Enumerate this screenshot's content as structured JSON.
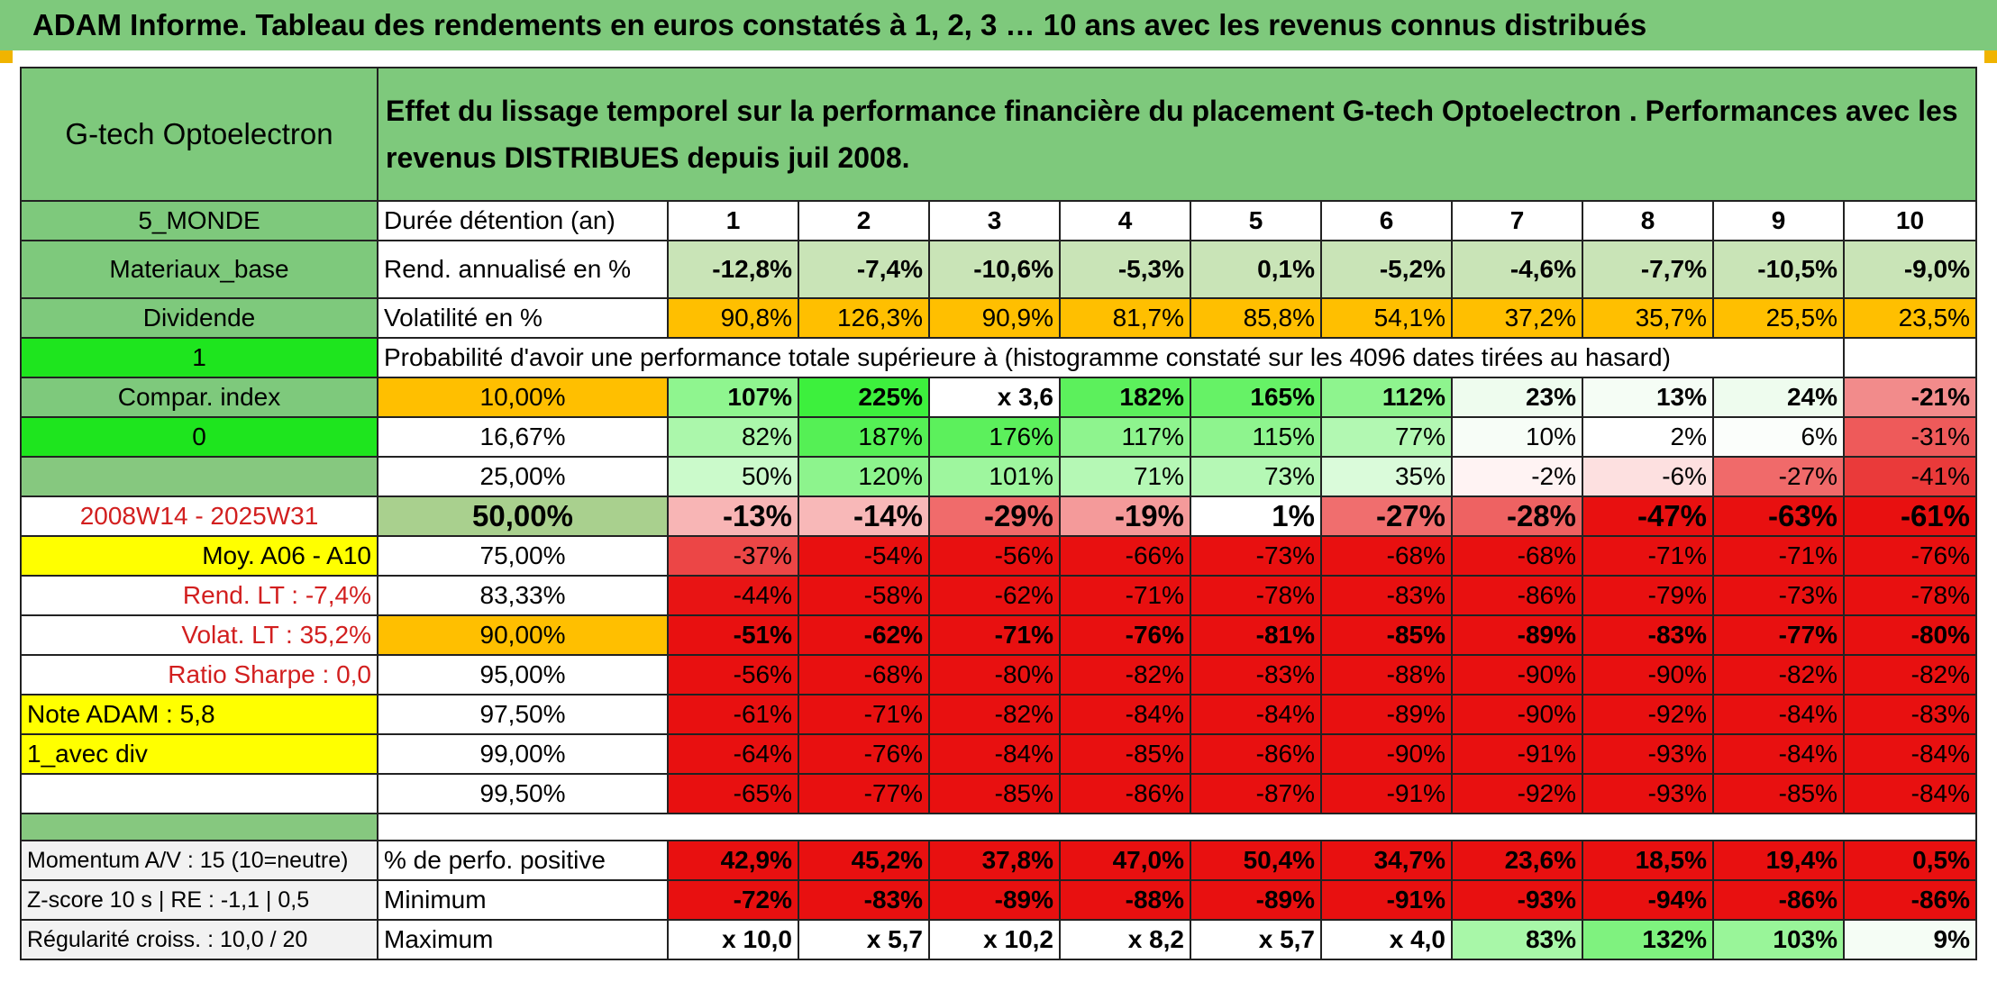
{
  "title": "ADAM Informe. Tableau des rendements en euros constatés à 1, 2, 3 … 10 ans avec les revenus connus distribués",
  "fund_name": "G-tech Optoelectron",
  "header_text": "Effet du lissage temporel sur la performance financière du placement G-tech Optoelectron . Performances avec les revenus DISTRIBUES depuis juil 2008.",
  "left_labels": {
    "zone": "5_MONDE",
    "sector": "Materiaux_base",
    "dividende": "Dividende",
    "div_value": "1",
    "compar_index": "Compar. index",
    "compar_value": "0",
    "period": "2008W14 - 2025W31",
    "moy": "Moy. A06 - A10",
    "rend_lt": "Rend. LT :   -7,4%",
    "volat_lt": "Volat. LT :   35,2%",
    "sharpe": "Ratio Sharpe :    0,0",
    "note": "Note ADAM : 5,8",
    "avec_div": "1_avec div",
    "momentum": "Momentum A/V : 15 (10=neutre)",
    "zscore": "Z-score 10 s | RE : -1,1 | 0,5",
    "regularite": "Régularité croiss. : 10,0 / 20"
  },
  "row_labels": {
    "duree": "Durée détention (an)",
    "rend": "Rend. annualisé en %",
    "volat": "Volatilité en %",
    "proba": "Probabilité d'avoir une performance totale supérieure à (histogramme constaté sur les 4096 dates tirées au hasard)",
    "positive": "% de perfo. positive",
    "minimum": "Minimum",
    "maximum": "Maximum"
  },
  "years": [
    "1",
    "2",
    "3",
    "4",
    "5",
    "6",
    "7",
    "8",
    "9",
    "10"
  ],
  "rend_values": [
    "-12,8%",
    "-7,4%",
    "-10,6%",
    "-5,3%",
    "0,1%",
    "-5,2%",
    "-4,6%",
    "-7,7%",
    "-10,5%",
    "-9,0%"
  ],
  "volat_values": [
    "90,8%",
    "126,3%",
    "90,9%",
    "81,7%",
    "85,8%",
    "54,1%",
    "37,2%",
    "35,7%",
    "25,5%",
    "23,5%"
  ],
  "percentile_rows": [
    {
      "p": "10,00%",
      "v": [
        "107%",
        "225%",
        "x 3,6",
        "182%",
        "165%",
        "112%",
        "23%",
        "13%",
        "24%",
        "-21%"
      ],
      "bg": [
        "#8ff58f",
        "#3df03d",
        "#ffffff",
        "#5cf05c",
        "#66f266",
        "#8ef48e",
        "#eefcee",
        "#f5fdf5",
        "#eefcee",
        "#f28b8b"
      ]
    },
    {
      "p": "16,67%",
      "v": [
        "82%",
        "187%",
        "176%",
        "117%",
        "115%",
        "77%",
        "10%",
        "2%",
        "6%",
        "-31%"
      ],
      "bg": [
        "#abf7ab",
        "#55f055",
        "#5cf05c",
        "#8ef48e",
        "#8ef48e",
        "#b2f8b2",
        "#f7fdf7",
        "#ffffff",
        "#fbfefb",
        "#ee5a5a"
      ]
    },
    {
      "p": "25,00%",
      "v": [
        "50%",
        "120%",
        "101%",
        "71%",
        "73%",
        "35%",
        "-2%",
        "-6%",
        "-27%",
        "-41%"
      ],
      "bg": [
        "#cbfacb",
        "#8df48d",
        "#9ef69e",
        "#b5f8b5",
        "#b5f8b5",
        "#dafbda",
        "#fff3f3",
        "#fde0e0",
        "#f06a6a",
        "#ea3a3a"
      ]
    },
    {
      "p": "50,00%",
      "v": [
        "-13%",
        "-14%",
        "-29%",
        "-19%",
        "1%",
        "-27%",
        "-28%",
        "-47%",
        "-63%",
        "-61%"
      ],
      "bg": [
        "#f8b5b5",
        "#f8b8b8",
        "#f06b6b",
        "#f49a9a",
        "#ffffff",
        "#f06e6e",
        "#ee6262",
        "#e81010",
        "#e81010",
        "#e81010"
      ]
    },
    {
      "p": "75,00%",
      "v": [
        "-37%",
        "-54%",
        "-56%",
        "-66%",
        "-73%",
        "-68%",
        "-68%",
        "-71%",
        "-71%",
        "-76%"
      ],
      "bg": [
        "#ec4646",
        "#e81010",
        "#e81010",
        "#e81010",
        "#e81010",
        "#e81010",
        "#e81010",
        "#e81010",
        "#e81010",
        "#e81010"
      ]
    },
    {
      "p": "83,33%",
      "v": [
        "-44%",
        "-58%",
        "-62%",
        "-71%",
        "-78%",
        "-83%",
        "-86%",
        "-79%",
        "-73%",
        "-78%"
      ],
      "bg": [
        "#e81414",
        "#e81010",
        "#e81010",
        "#e81010",
        "#e81010",
        "#e81010",
        "#e81010",
        "#e81010",
        "#e81010",
        "#e81010"
      ]
    },
    {
      "p": "90,00%",
      "v": [
        "-51%",
        "-62%",
        "-71%",
        "-76%",
        "-81%",
        "-85%",
        "-89%",
        "-83%",
        "-77%",
        "-80%"
      ],
      "bg": [
        "#e81010",
        "#e81010",
        "#e81010",
        "#e81010",
        "#e81010",
        "#e81010",
        "#e81010",
        "#e81010",
        "#e81010",
        "#e81010"
      ]
    },
    {
      "p": "95,00%",
      "v": [
        "-56%",
        "-68%",
        "-80%",
        "-82%",
        "-83%",
        "-88%",
        "-90%",
        "-90%",
        "-82%",
        "-82%"
      ],
      "bg": [
        "#e81010",
        "#e81010",
        "#e81010",
        "#e81010",
        "#e81010",
        "#e81010",
        "#e81010",
        "#e81010",
        "#e81010",
        "#e81010"
      ]
    },
    {
      "p": "97,50%",
      "v": [
        "-61%",
        "-71%",
        "-82%",
        "-84%",
        "-84%",
        "-89%",
        "-90%",
        "-92%",
        "-84%",
        "-83%"
      ],
      "bg": [
        "#e81010",
        "#e81010",
        "#e81010",
        "#e81010",
        "#e81010",
        "#e81010",
        "#e81010",
        "#e81010",
        "#e81010",
        "#e81010"
      ]
    },
    {
      "p": "99,00%",
      "v": [
        "-64%",
        "-76%",
        "-84%",
        "-85%",
        "-86%",
        "-90%",
        "-91%",
        "-93%",
        "-84%",
        "-84%"
      ],
      "bg": [
        "#e81010",
        "#e81010",
        "#e81010",
        "#e81010",
        "#e81010",
        "#e81010",
        "#e81010",
        "#e81010",
        "#e81010",
        "#e81010"
      ]
    },
    {
      "p": "99,50%",
      "v": [
        "-65%",
        "-77%",
        "-85%",
        "-86%",
        "-87%",
        "-91%",
        "-92%",
        "-93%",
        "-85%",
        "-84%"
      ],
      "bg": [
        "#e81010",
        "#e81010",
        "#e81010",
        "#e81010",
        "#e81010",
        "#e81010",
        "#e81010",
        "#e81010",
        "#e81010",
        "#e81010"
      ]
    }
  ],
  "positive_values": [
    "42,9%",
    "45,2%",
    "37,8%",
    "47,0%",
    "50,4%",
    "34,7%",
    "23,6%",
    "18,5%",
    "19,4%",
    "0,5%"
  ],
  "minimum_values": [
    "-72%",
    "-83%",
    "-89%",
    "-88%",
    "-89%",
    "-91%",
    "-93%",
    "-94%",
    "-86%",
    "-86%"
  ],
  "maximum_values": [
    "x 10,0",
    "x 5,7",
    "x 10,2",
    "x 8,2",
    "x 5,7",
    "x 4,0",
    "83%",
    "132%",
    "103%",
    "9%"
  ],
  "maximum_bg": [
    "#ffffff",
    "#ffffff",
    "#ffffff",
    "#ffffff",
    "#ffffff",
    "#ffffff",
    "#a8f7a8",
    "#7ff27f",
    "#99f599",
    "#f5fdf5"
  ],
  "colors": {
    "header_green": "#7ec97c",
    "label_green": "#86c87f",
    "bright_green": "#1ee51e",
    "rend_green": "#c9e4b7",
    "orange": "#ffbf00",
    "yellow": "#ffff00",
    "red_text": "#d21f1f",
    "red_fill": "#e81010",
    "grey_fill": "#f2f2f2"
  }
}
